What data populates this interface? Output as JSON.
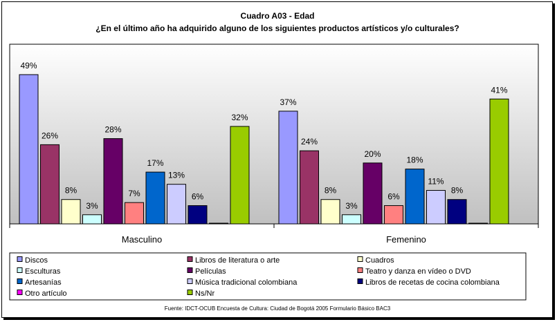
{
  "chart_data": {
    "type": "bar",
    "title": "Cuadro A03 - Edad",
    "subtitle": "¿En el último año ha adquirido alguno de los siguientes productos artísticos y/o culturales?",
    "categories": [
      "Masculino",
      "Femenino"
    ],
    "series": [
      {
        "name": "Discos",
        "color": "#9999ff",
        "values": [
          49,
          37
        ],
        "labels": [
          "49%",
          "37%"
        ]
      },
      {
        "name": "Libros de literatura o arte",
        "color": "#993366",
        "values": [
          26,
          24
        ],
        "labels": [
          "26%",
          "24%"
        ]
      },
      {
        "name": "Cuadros",
        "color": "#ffffcc",
        "values": [
          8,
          8
        ],
        "labels": [
          "8%",
          "8%"
        ]
      },
      {
        "name": "Esculturas",
        "color": "#ccffff",
        "values": [
          3,
          3
        ],
        "labels": [
          "3%",
          "3%"
        ]
      },
      {
        "name": "Películas",
        "color": "#660066",
        "values": [
          28,
          20
        ],
        "labels": [
          "28%",
          "20%"
        ]
      },
      {
        "name": "Teatro y danza en vídeo o DVD",
        "color": "#ff8080",
        "values": [
          7,
          6
        ],
        "labels": [
          "7%",
          "6%"
        ]
      },
      {
        "name": "Artesanías",
        "color": "#0066cc",
        "values": [
          17,
          18
        ],
        "labels": [
          "17%",
          "18%"
        ]
      },
      {
        "name": "Música tradicional colombiana",
        "color": "#ccccff",
        "values": [
          13,
          11
        ],
        "labels": [
          "13%",
          "11%"
        ]
      },
      {
        "name": "Libros de recetas de cocina colombiana",
        "color": "#000080",
        "values": [
          6,
          8
        ],
        "labels": [
          "6%",
          "8%"
        ]
      },
      {
        "name": "Otro artículo",
        "color": "#ff00ff",
        "values": [
          0,
          0
        ],
        "labels": [
          "",
          ""
        ]
      },
      {
        "name": "Ns/Nr",
        "color": "#99cc00",
        "values": [
          32,
          41
        ],
        "labels": [
          "32%",
          "41%"
        ]
      }
    ],
    "value_axis": {
      "min": 0,
      "max": 49,
      "gridlines": false,
      "shown": false
    },
    "plot_background": "#c0c0c0",
    "legend_position": "bottom",
    "source": "Fuente: IDCT-OCUB Encuesta de Cultura: Ciudad de Bogotá 2005 Formulario Básico BAC3"
  }
}
